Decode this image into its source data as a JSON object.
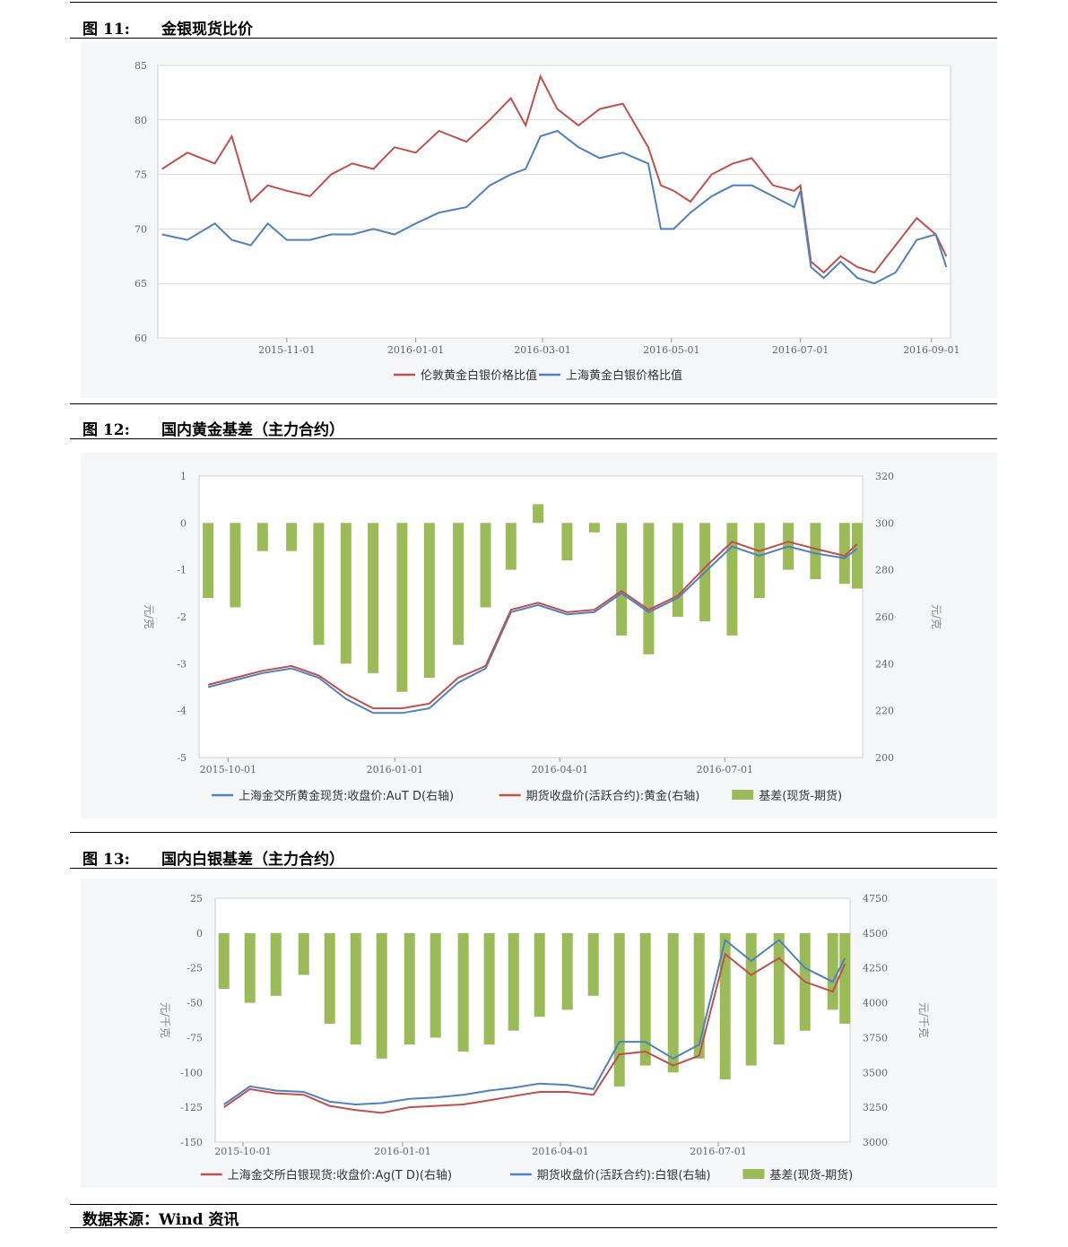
{
  "figures": [
    {
      "number": "图 11:",
      "title": "金银现货比价",
      "chart_data": {
        "type": "line",
        "y_axis": {
          "min": 60,
          "max": 85,
          "step": 5,
          "ticks": [
            "60",
            "65",
            "70",
            "75",
            "80",
            "85"
          ]
        },
        "x_axis": {
          "range": [
            "2015-09-01",
            "2016-09-10"
          ],
          "ticks": [
            "2015-11-01",
            "2016-01-01",
            "2016-03-01",
            "2016-05-01",
            "2016-07-01",
            "2016-09-01"
          ]
        },
        "grid": true,
        "legend_position": "bottom-center",
        "series": [
          {
            "name": "伦敦黄金白银价格比值",
            "color": "#c0504d",
            "x": [
              "2015-09-03",
              "2015-09-15",
              "2015-09-28",
              "2015-10-06",
              "2015-10-15",
              "2015-10-23",
              "2015-11-01",
              "2015-11-12",
              "2015-11-22",
              "2015-12-02",
              "2015-12-12",
              "2015-12-22",
              "2016-01-01",
              "2016-01-12",
              "2016-01-25",
              "2016-02-05",
              "2016-02-15",
              "2016-02-22",
              "2016-02-29",
              "2016-03-08",
              "2016-03-18",
              "2016-03-28",
              "2016-04-08",
              "2016-04-20",
              "2016-04-26",
              "2016-05-02",
              "2016-05-10",
              "2016-05-20",
              "2016-05-30",
              "2016-06-08",
              "2016-06-18",
              "2016-06-28",
              "2016-07-01",
              "2016-07-06",
              "2016-07-12",
              "2016-07-20",
              "2016-07-28",
              "2016-08-05",
              "2016-08-15",
              "2016-08-25",
              "2016-09-03",
              "2016-09-08"
            ],
            "y": [
              75.5,
              77.0,
              76.0,
              78.5,
              72.5,
              74.0,
              73.5,
              73.0,
              75.0,
              76.0,
              75.5,
              77.5,
              77.0,
              79.0,
              78.0,
              80.0,
              82.0,
              79.5,
              84.0,
              81.0,
              79.5,
              81.0,
              81.5,
              77.5,
              74.0,
              73.5,
              72.5,
              75.0,
              76.0,
              76.5,
              74.0,
              73.5,
              74.0,
              67.0,
              66.0,
              67.5,
              66.5,
              66.0,
              68.5,
              71.0,
              69.5,
              67.5
            ]
          },
          {
            "name": "上海黄金白银价格比值",
            "color": "#4f81bd",
            "x": [
              "2015-09-03",
              "2015-09-15",
              "2015-09-28",
              "2015-10-06",
              "2015-10-15",
              "2015-10-23",
              "2015-11-01",
              "2015-11-12",
              "2015-11-22",
              "2015-12-02",
              "2015-12-12",
              "2015-12-22",
              "2016-01-01",
              "2016-01-12",
              "2016-01-25",
              "2016-02-05",
              "2016-02-15",
              "2016-02-22",
              "2016-02-29",
              "2016-03-08",
              "2016-03-18",
              "2016-03-28",
              "2016-04-08",
              "2016-04-20",
              "2016-04-26",
              "2016-05-02",
              "2016-05-10",
              "2016-05-20",
              "2016-05-30",
              "2016-06-08",
              "2016-06-18",
              "2016-06-28",
              "2016-07-01",
              "2016-07-06",
              "2016-07-12",
              "2016-07-20",
              "2016-07-28",
              "2016-08-05",
              "2016-08-15",
              "2016-08-25",
              "2016-09-03",
              "2016-09-08"
            ],
            "y": [
              69.5,
              69.0,
              70.5,
              69.0,
              68.5,
              70.5,
              69.0,
              69.0,
              69.5,
              69.5,
              70.0,
              69.5,
              70.5,
              71.5,
              72.0,
              74.0,
              75.0,
              75.5,
              78.5,
              79.0,
              77.5,
              76.5,
              77.0,
              76.0,
              70.0,
              70.0,
              71.5,
              73.0,
              74.0,
              74.0,
              73.0,
              72.0,
              73.5,
              66.5,
              65.5,
              67.0,
              65.5,
              65.0,
              66.0,
              69.0,
              69.5,
              66.5
            ]
          }
        ]
      }
    },
    {
      "number": "图 12:",
      "title": "国内黄金基差（主力合约）",
      "unit_left": "元/克",
      "unit_right": "元/克",
      "chart_data": {
        "type": "bar+line",
        "y_left": {
          "min": -5,
          "max": 1,
          "ticks": [
            "1",
            "0",
            "-1",
            "-2",
            "-3",
            "-4",
            "-5"
          ]
        },
        "y_right": {
          "min": 200,
          "max": 320,
          "ticks": [
            "320",
            "300",
            "280",
            "260",
            "240",
            "220",
            "200"
          ]
        },
        "x_axis": {
          "range": [
            "2015-09-15",
            "2016-09-15"
          ],
          "ticks": [
            "2015-10-01",
            "2016-01-01",
            "2016-04-01",
            "2016-07-01"
          ]
        },
        "legend_position": "bottom-center",
        "series": [
          {
            "name": "上海金交所黄金现货:收盘价:AuT D(右轴)",
            "axis": "right",
            "color": "#4f81bd",
            "x": [
              "2015-09-20",
              "2015-10-05",
              "2015-10-20",
              "2015-11-05",
              "2015-11-20",
              "2015-12-05",
              "2015-12-20",
              "2016-01-05",
              "2016-01-20",
              "2016-02-05",
              "2016-02-20",
              "2016-03-05",
              "2016-03-20",
              "2016-04-05",
              "2016-04-20",
              "2016-05-05",
              "2016-05-20",
              "2016-06-05",
              "2016-06-20",
              "2016-07-05",
              "2016-07-20",
              "2016-08-05",
              "2016-08-20",
              "2016-09-05",
              "2016-09-12"
            ],
            "y": [
              230,
              233,
              236,
              238,
              234,
              225,
              219,
              219,
              221,
              232,
              238,
              262,
              265,
              261,
              262,
              270,
              262,
              268,
              279,
              290,
              286,
              290,
              287,
              285,
              289
            ]
          },
          {
            "name": "期货收盘价(活跃合约):黄金(右轴)",
            "axis": "right",
            "color": "#c0504d",
            "x": [
              "2015-09-20",
              "2015-10-05",
              "2015-10-20",
              "2015-11-05",
              "2015-11-20",
              "2015-12-05",
              "2015-12-20",
              "2016-01-05",
              "2016-01-20",
              "2016-02-05",
              "2016-02-20",
              "2016-03-05",
              "2016-03-20",
              "2016-04-05",
              "2016-04-20",
              "2016-05-05",
              "2016-05-20",
              "2016-06-05",
              "2016-06-20",
              "2016-07-05",
              "2016-07-20",
              "2016-08-05",
              "2016-08-20",
              "2016-09-05",
              "2016-09-12"
            ],
            "y": [
              231,
              234,
              237,
              239,
              235,
              227,
              221,
              221,
              223,
              234,
              239,
              263,
              266,
              262,
              263,
              271,
              263,
              269,
              281,
              292,
              288,
              292,
              289,
              286,
              291
            ]
          },
          {
            "name": "基差(现货-期货)",
            "axis": "left",
            "color": "#9bbb59",
            "kind": "bar",
            "x": [
              "2015-09-20",
              "2015-10-05",
              "2015-10-20",
              "2015-11-05",
              "2015-11-20",
              "2015-12-05",
              "2015-12-20",
              "2016-01-05",
              "2016-01-20",
              "2016-02-05",
              "2016-02-20",
              "2016-03-05",
              "2016-03-20",
              "2016-04-05",
              "2016-04-20",
              "2016-05-05",
              "2016-05-20",
              "2016-06-05",
              "2016-06-20",
              "2016-07-05",
              "2016-07-20",
              "2016-08-05",
              "2016-08-20",
              "2016-09-05",
              "2016-09-12"
            ],
            "y": [
              -1.6,
              -1.8,
              -0.6,
              -0.6,
              -2.6,
              -3.0,
              -3.2,
              -3.6,
              -3.3,
              -2.6,
              -1.8,
              -1.0,
              0.4,
              -0.8,
              -0.2,
              -2.4,
              -2.8,
              -2.0,
              -2.1,
              -2.4,
              -1.6,
              -1.0,
              -1.2,
              -1.3,
              -1.4
            ]
          }
        ]
      }
    },
    {
      "number": "图 13:",
      "title": "国内白银基差（主力合约）",
      "unit_left": "元/千克",
      "unit_right": "元/千克",
      "chart_data": {
        "type": "bar+line",
        "y_left": {
          "min": -150,
          "max": 25,
          "ticks": [
            "25",
            "0",
            "-25",
            "-50",
            "-75",
            "-100",
            "-125",
            "-150"
          ]
        },
        "y_right": {
          "min": 3000,
          "max": 4750,
          "ticks": [
            "4750",
            "4500",
            "4250",
            "4000",
            "3750",
            "3500",
            "3250",
            "3000"
          ]
        },
        "x_axis": {
          "range": [
            "2015-09-15",
            "2016-09-15"
          ],
          "ticks": [
            "2015-10-01",
            "2016-01-01",
            "2016-04-01",
            "2016-07-01"
          ]
        },
        "legend_position": "bottom-center",
        "series": [
          {
            "name": "上海金交所白银现货:收盘价:Ag(T D)(右轴)",
            "axis": "right",
            "color": "#c0504d",
            "x": [
              "2015-09-20",
              "2015-10-05",
              "2015-10-20",
              "2015-11-05",
              "2015-11-20",
              "2015-12-05",
              "2015-12-20",
              "2016-01-05",
              "2016-01-20",
              "2016-02-05",
              "2016-02-20",
              "2016-03-05",
              "2016-03-20",
              "2016-04-05",
              "2016-04-20",
              "2016-05-05",
              "2016-05-20",
              "2016-06-05",
              "2016-06-20",
              "2016-07-05",
              "2016-07-20",
              "2016-08-05",
              "2016-08-20",
              "2016-09-05",
              "2016-09-12"
            ],
            "y": [
              3250,
              3380,
              3350,
              3340,
              3260,
              3230,
              3210,
              3250,
              3260,
              3270,
              3300,
              3330,
              3360,
              3360,
              3340,
              3630,
              3650,
              3550,
              3620,
              4350,
              4200,
              4320,
              4150,
              4080,
              4280
            ]
          },
          {
            "name": "期货收盘价(活跃合约):白银(右轴)",
            "axis": "right",
            "color": "#4f81bd",
            "x": [
              "2015-09-20",
              "2015-10-05",
              "2015-10-20",
              "2015-11-05",
              "2015-11-20",
              "2015-12-05",
              "2015-12-20",
              "2016-01-05",
              "2016-01-20",
              "2016-02-05",
              "2016-02-20",
              "2016-03-05",
              "2016-03-20",
              "2016-04-05",
              "2016-04-20",
              "2016-05-05",
              "2016-05-20",
              "2016-06-05",
              "2016-06-20",
              "2016-07-05",
              "2016-07-20",
              "2016-08-05",
              "2016-08-20",
              "2016-09-05",
              "2016-09-12"
            ],
            "y": [
              3270,
              3400,
              3370,
              3360,
              3290,
              3270,
              3280,
              3310,
              3320,
              3340,
              3370,
              3390,
              3420,
              3410,
              3380,
              3720,
              3720,
              3600,
              3700,
              4450,
              4300,
              4450,
              4250,
              4150,
              4320
            ]
          },
          {
            "name": "基差(现货-期货)",
            "axis": "left",
            "color": "#9bbb59",
            "kind": "bar",
            "x": [
              "2015-09-20",
              "2015-10-05",
              "2015-10-20",
              "2015-11-05",
              "2015-11-20",
              "2015-12-05",
              "2015-12-20",
              "2016-01-05",
              "2016-01-20",
              "2016-02-05",
              "2016-02-20",
              "2016-03-05",
              "2016-03-20",
              "2016-04-05",
              "2016-04-20",
              "2016-05-05",
              "2016-05-20",
              "2016-06-05",
              "2016-06-20",
              "2016-07-05",
              "2016-07-20",
              "2016-08-05",
              "2016-08-20",
              "2016-09-05",
              "2016-09-12"
            ],
            "y": [
              -40,
              -50,
              -45,
              -30,
              -65,
              -80,
              -90,
              -80,
              -75,
              -85,
              -80,
              -70,
              -60,
              -55,
              -45,
              -110,
              -95,
              -100,
              -90,
              -105,
              -95,
              -80,
              -70,
              -55,
              -65
            ]
          }
        ]
      }
    }
  ],
  "source": "数据来源：Wind 资讯"
}
